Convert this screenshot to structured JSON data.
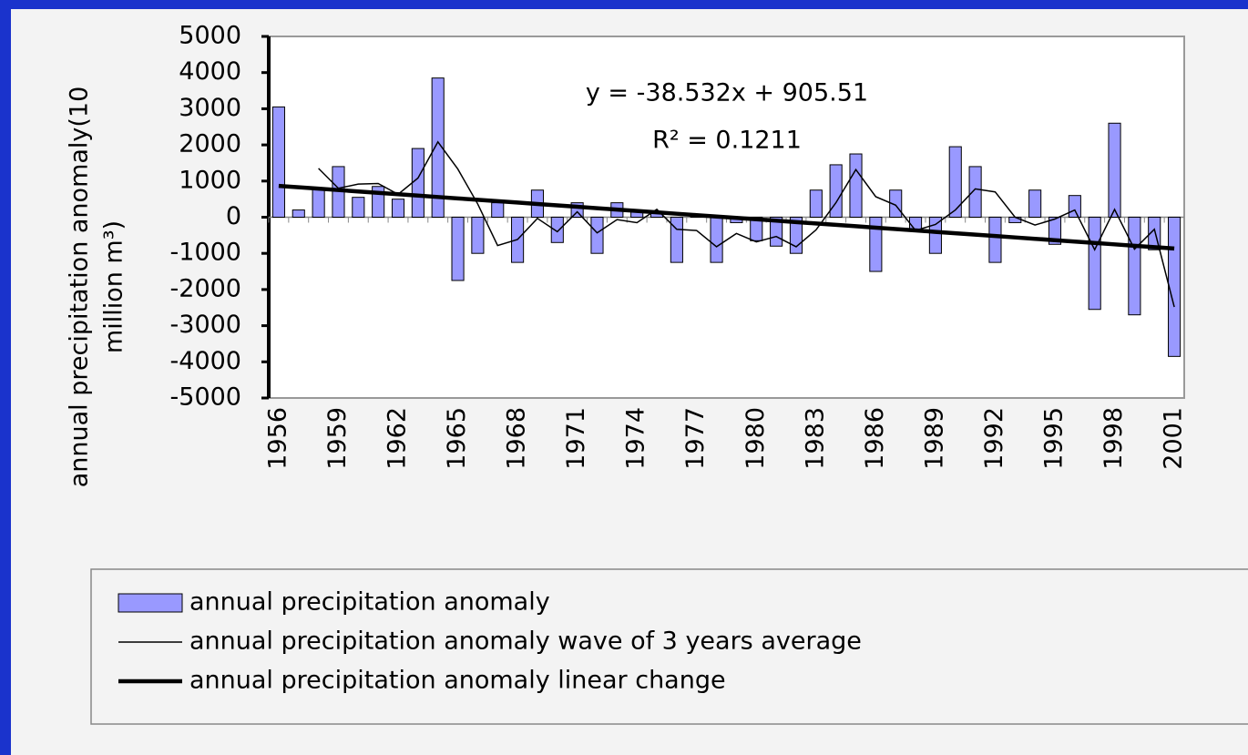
{
  "chart_data": {
    "type": "bar",
    "categories": [
      "1956",
      null,
      null,
      "1959",
      null,
      null,
      "1962",
      null,
      null,
      "1965",
      null,
      null,
      "1968",
      null,
      null,
      "1971",
      null,
      null,
      "1974",
      null,
      null,
      "1977",
      null,
      null,
      "1980",
      null,
      null,
      "1983",
      null,
      null,
      "1986",
      null,
      null,
      "1989",
      null,
      null,
      "1992",
      null,
      null,
      "1995",
      null,
      null,
      "1998",
      null,
      null,
      "2001"
    ],
    "ylabel": [
      "annual precipitation anomaly(10",
      "million m³)"
    ],
    "ylim": [
      -5000,
      5000
    ],
    "yticks": [
      -5000,
      -4000,
      -3000,
      -2000,
      -1000,
      0,
      1000,
      2000,
      3000,
      4000,
      5000
    ],
    "series": [
      {
        "name": "annual precipitation anomaly",
        "type": "bar",
        "color": "#9999ff",
        "values": [
          3050,
          200,
          800,
          1400,
          550,
          850,
          500,
          1900,
          3850,
          -1750,
          -1000,
          400,
          -1250,
          750,
          -700,
          400,
          -1000,
          400,
          150,
          100,
          -1250,
          50,
          -1250,
          -150,
          -650,
          -800,
          -1000,
          750,
          1450,
          1750,
          -1500,
          750,
          -350,
          -1000,
          1950,
          1400,
          -1250,
          -150,
          750,
          -750,
          600,
          -2550,
          2600,
          -2700,
          -900,
          -3850
        ]
      },
      {
        "name": "annual precipitation anomaly wave of 3 years average",
        "type": "line",
        "color": "#000000",
        "values": [
          null,
          null,
          1350,
          800,
          917,
          933,
          633,
          1083,
          2083,
          1333,
          367,
          -783,
          -617,
          -33,
          -400,
          150,
          -433,
          -67,
          -150,
          217,
          -333,
          -367,
          -817,
          -450,
          -683,
          -533,
          -817,
          -350,
          400,
          1317,
          567,
          333,
          -367,
          -200,
          200,
          783,
          700,
          0,
          -217,
          -50,
          200,
          -900,
          217,
          -883,
          -333,
          -2483
        ]
      },
      {
        "name": "annual precipitation anomaly linear change",
        "type": "trend",
        "color": "#000000",
        "values": [
          867,
          828,
          790,
          751,
          713,
          674,
          636,
          597,
          559,
          520,
          482,
          443,
          405,
          366,
          328,
          289,
          250,
          212,
          173,
          135,
          96,
          58,
          19,
          -19,
          -58,
          -96,
          -135,
          -173,
          -212,
          -250,
          -289,
          -328,
          -366,
          -405,
          -443,
          -482,
          -520,
          -559,
          -597,
          -636,
          -674,
          -713,
          -751,
          -790,
          -828,
          -867
        ]
      }
    ],
    "annotations": [
      "y = -38.532x + 905.51",
      "R² = 0.1211"
    ],
    "legend": "bottom"
  }
}
